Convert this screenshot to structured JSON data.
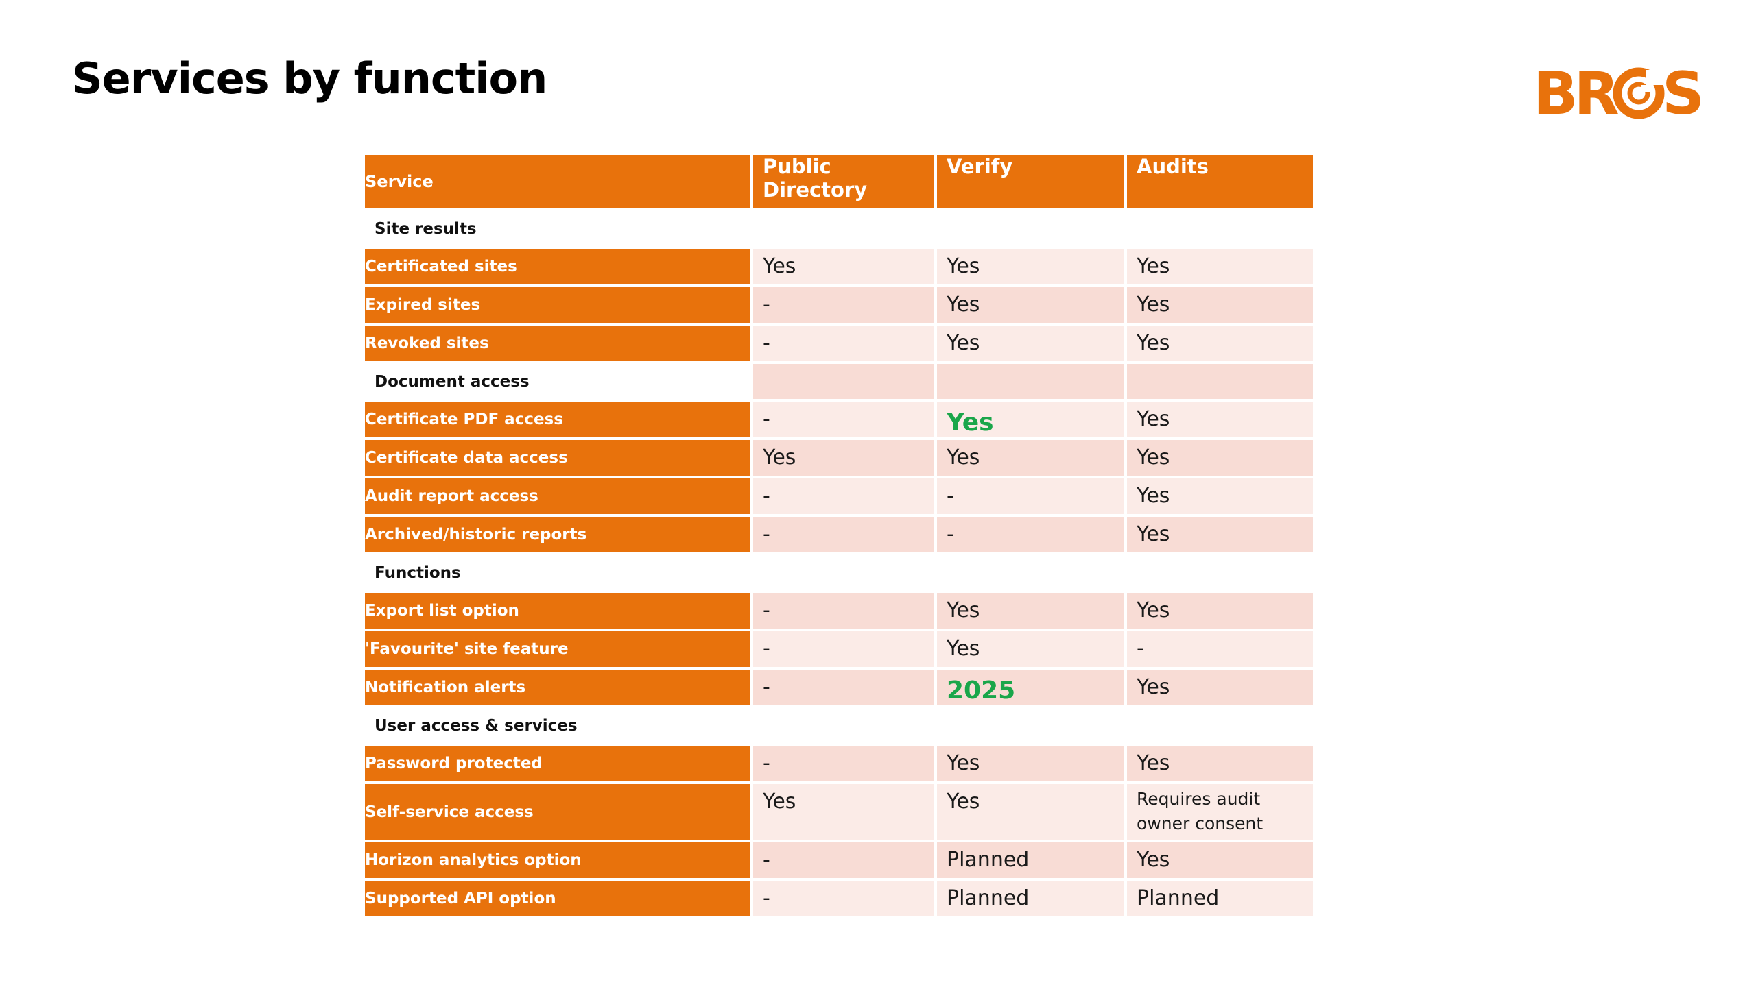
{
  "title": "Services by function",
  "logo": {
    "text": "BRCGS",
    "color": "#E8720C"
  },
  "colors": {
    "accent": "#E8720C",
    "row_light": "#FBEBE7",
    "row_dark": "#F8DCD5",
    "highlight": "#1AA64A"
  },
  "table": {
    "headers": [
      "Service",
      "Public Directory",
      "Verify",
      "Audits"
    ],
    "sections": [
      {
        "name": "Site results",
        "rows": [
          {
            "label": "Certificated sites",
            "values": [
              "Yes",
              "Yes",
              "Yes"
            ]
          },
          {
            "label": "Expired sites",
            "values": [
              "-",
              "Yes",
              "Yes"
            ]
          },
          {
            "label": "Revoked sites",
            "values": [
              "-",
              "Yes",
              "Yes"
            ]
          }
        ]
      },
      {
        "name": "Document access",
        "rows": [
          {
            "label": "Certificate PDF access",
            "values": [
              "-",
              "Yes",
              "Yes"
            ]
          },
          {
            "label": "Certificate data access",
            "values": [
              "Yes",
              "Yes",
              "Yes"
            ]
          },
          {
            "label": "Audit report access",
            "values": [
              "-",
              "-",
              "Yes"
            ]
          },
          {
            "label": "Archived/historic reports",
            "values": [
              "-",
              "-",
              "Yes"
            ]
          }
        ]
      },
      {
        "name": "Functions",
        "rows": [
          {
            "label": "Export list option",
            "values": [
              "-",
              "Yes",
              "Yes"
            ]
          },
          {
            "label": "'Favourite' site feature",
            "values": [
              "-",
              "Yes",
              "-"
            ]
          },
          {
            "label": "Notification alerts",
            "values": [
              "-",
              "2025",
              "Yes"
            ]
          }
        ]
      },
      {
        "name": "User access & services",
        "rows": [
          {
            "label": "Password protected",
            "values": [
              "-",
              "Yes",
              "Yes"
            ]
          },
          {
            "label": "Self-service access",
            "values": [
              "Yes",
              "Yes",
              "Requires audit owner consent"
            ]
          },
          {
            "label": "Horizon analytics option",
            "values": [
              "-",
              "Planned",
              "Yes"
            ]
          },
          {
            "label": "Supported API option",
            "values": [
              "-",
              "Planned",
              "Planned"
            ]
          }
        ]
      }
    ]
  }
}
